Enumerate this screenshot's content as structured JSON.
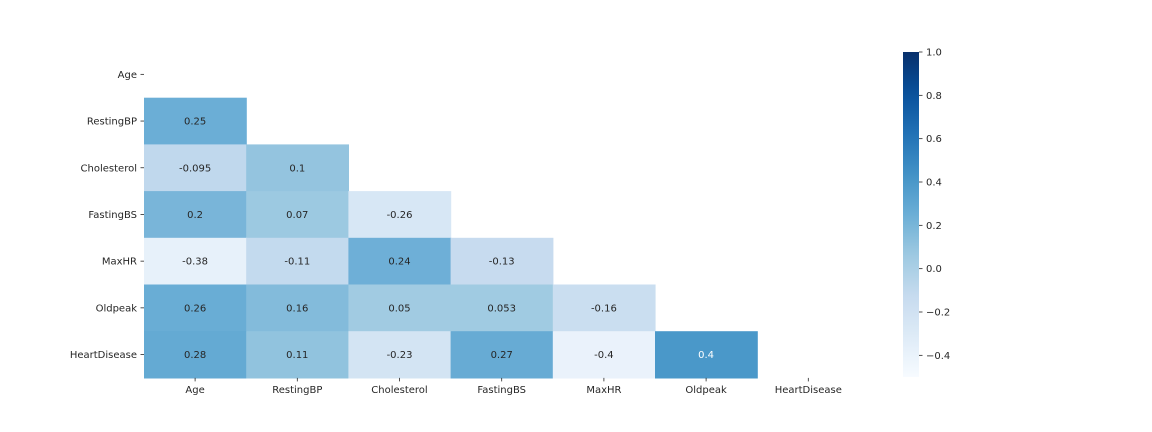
{
  "chart_data": {
    "type": "heatmap",
    "title": "",
    "variables": [
      "Age",
      "RestingBP",
      "Cholesterol",
      "FastingBS",
      "MaxHR",
      "Oldpeak",
      "HeartDisease"
    ],
    "matrix": [
      [
        null,
        null,
        null,
        null,
        null,
        null,
        null
      ],
      [
        "0.25",
        null,
        null,
        null,
        null,
        null,
        null
      ],
      [
        "-0.095",
        "0.1",
        null,
        null,
        null,
        null,
        null
      ],
      [
        "0.2",
        "0.07",
        "-0.26",
        null,
        null,
        null,
        null
      ],
      [
        "-0.38",
        "-0.11",
        "0.24",
        "-0.13",
        null,
        null,
        null
      ],
      [
        "0.26",
        "0.16",
        "0.05",
        "0.053",
        "-0.16",
        null,
        null
      ],
      [
        "0.28",
        "0.11",
        "-0.23",
        "0.27",
        "-0.4",
        "0.4",
        null
      ]
    ],
    "mask": "upper triangle including diagonal",
    "colormap": "Blues",
    "vmin": -0.5,
    "vmax": 1.0,
    "colorbar_ticks": [
      "1.0",
      "0.8",
      "0.6",
      "0.4",
      "0.2",
      "0.0",
      "−0.2",
      "−0.4"
    ]
  }
}
